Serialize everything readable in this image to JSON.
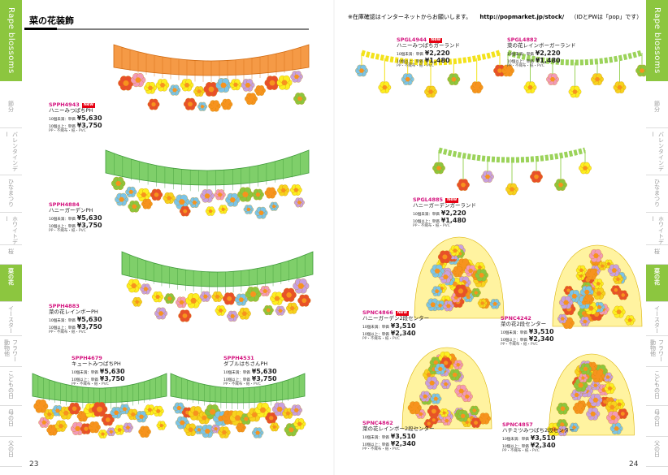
{
  "header": {
    "title": "菜の花装飾",
    "notice": "※在庫確認はインターネットからお願いします。",
    "url": "http://popmarket.jp/stock/",
    "note": "（IDとPWは「pop」です）"
  },
  "side_tab": {
    "label": "Rape blossoms",
    "index": [
      "節分",
      "バレンタインデー",
      "ひなまつり",
      "ホワイトデー",
      "桜",
      "菜の花",
      "イースター",
      "フラワー動物他",
      "こどもの日",
      "母の日",
      "父の日"
    ]
  },
  "page_numbers": {
    "left": 23,
    "right": 24
  },
  "products": [
    {
      "code": "SPPH4943",
      "badge": "New",
      "name": "ハニーみつばちPH",
      "tiers": [
        {
          "label": "10個未満：単価",
          "price": "¥5,630"
        },
        {
          "label": "10個以上：単価",
          "price": "¥3,750"
        }
      ],
      "spec": "PP・不織布・紙・PVC"
    },
    {
      "code": "SPPH4884",
      "name": "ハニーガーデンPH",
      "tiers": [
        {
          "label": "10個未満：単価",
          "price": "¥5,630"
        },
        {
          "label": "10個以上：単価",
          "price": "¥3,750"
        }
      ],
      "spec": "PP・不織布・紙・PVC"
    },
    {
      "code": "SPPH4883",
      "name": "菜の花レインボーPH",
      "tiers": [
        {
          "label": "10個未満：単価",
          "price": "¥5,630"
        },
        {
          "label": "10個以上：単価",
          "price": "¥3,750"
        }
      ],
      "spec": "PP・不織布・紙・PVC"
    },
    {
      "code": "SPPH4679",
      "name": "キュートみつばちPH",
      "tiers": [
        {
          "label": "10個未満：単価",
          "price": "¥5,630"
        },
        {
          "label": "10個以上：単価",
          "price": "¥3,750"
        }
      ],
      "spec": "PP・不織布・紙・PVC"
    },
    {
      "code": "SPPH4531",
      "name": "ダブルはちさんPH",
      "tiers": [
        {
          "label": "10個未満：単価",
          "price": "¥5,630"
        },
        {
          "label": "10個以上：単価",
          "price": "¥3,750"
        }
      ],
      "spec": "PP・不織布・紙・PVC"
    },
    {
      "code": "SPGL4944",
      "badge": "New",
      "name": "ハニーみつばちガーランド",
      "tiers": [
        {
          "label": "10個未満：単価",
          "price": "¥2,220"
        },
        {
          "label": "10個以上：単価",
          "price": "¥1,480"
        }
      ],
      "spec": "PP・不織布・紙・PVC"
    },
    {
      "code": "SPGL4882",
      "name": "菜の花レインボーガーランド",
      "tiers": [
        {
          "label": "10個未満：単価",
          "price": "¥2,220"
        },
        {
          "label": "10個以上：単価",
          "price": "¥1,480"
        }
      ],
      "spec": "PP・不織布・紙・PVC"
    },
    {
      "code": "SPGL4885",
      "badge": "New",
      "name": "ハニーガーデンガーランド",
      "tiers": [
        {
          "label": "10個未満：単価",
          "price": "¥2,220"
        },
        {
          "label": "10個以上：単価",
          "price": "¥1,480"
        }
      ],
      "spec": "PP・不織布・紙・PVC"
    },
    {
      "code": "SPNC4866",
      "badge": "New",
      "name": "ハニーガーデン2段センター",
      "tiers": [
        {
          "label": "10個未満：単価",
          "price": "¥3,510"
        },
        {
          "label": "10個以上：単価",
          "price": "¥2,340"
        }
      ],
      "spec": "PP・不織布・紙・PVC"
    },
    {
      "code": "SPNC4242",
      "name": "菜の花2段センター",
      "tiers": [
        {
          "label": "10個未満：単価",
          "price": "¥3,510"
        },
        {
          "label": "10個以上：単価",
          "price": "¥2,340"
        }
      ],
      "spec": "PP・不織布・紙・PVC"
    },
    {
      "code": "SPNC4862",
      "name": "菜の花レインボー2段センター",
      "tiers": [
        {
          "label": "10個未満：単価",
          "price": "¥3,510"
        },
        {
          "label": "10個以上：単価",
          "price": "¥2,340"
        }
      ],
      "spec": "PP・不織布・紙・PVC"
    },
    {
      "code": "SPNC4857",
      "name": "ハチミツみつばち2段センター",
      "tiers": [
        {
          "label": "10個未満：単価",
          "price": "¥3,510"
        },
        {
          "label": "10個以上：単価",
          "price": "¥2,340"
        }
      ],
      "spec": "PP・不織布・紙・PVC"
    }
  ]
}
